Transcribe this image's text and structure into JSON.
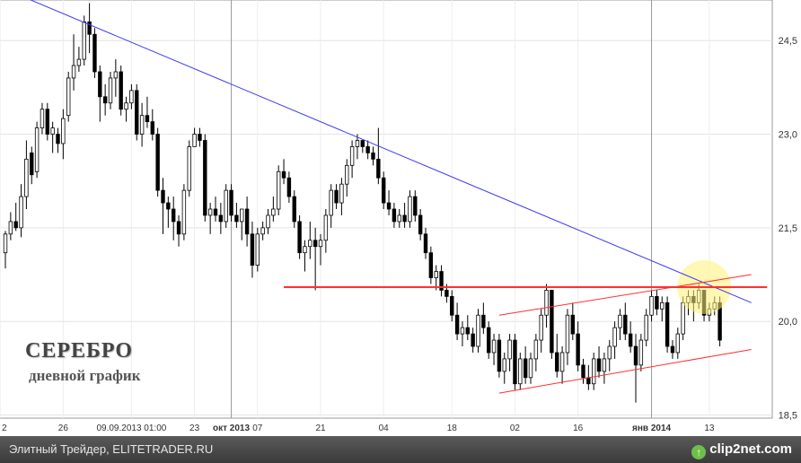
{
  "chart_data": {
    "type": "candlestick",
    "title": "СЕРЕБРО",
    "subtitle": "дневной график",
    "y_axis": {
      "ticks": [
        "24,5",
        "23,0",
        "21,5",
        "20,0",
        "18,5"
      ],
      "tick_values": [
        24.5,
        23.0,
        21.5,
        20.0,
        18.5
      ],
      "range": [
        18.45,
        25.15
      ],
      "side": "right"
    },
    "x_axis": {
      "ticks": [
        "2",
        "26",
        "09.09.2013 01:00",
        "23",
        "окт 2013",
        "07",
        "21",
        "04",
        "18",
        "02",
        "16",
        "янв 2014",
        "13"
      ]
    },
    "grid": true,
    "series": [
      {
        "type": "candlestick",
        "ohlc": [
          [
            21.1,
            21.45,
            20.85,
            21.4
          ],
          [
            21.4,
            21.75,
            21.3,
            21.6
          ],
          [
            21.6,
            21.9,
            21.45,
            21.5
          ],
          [
            21.5,
            22.2,
            21.35,
            22.0
          ],
          [
            22.0,
            22.9,
            21.8,
            22.6
          ],
          [
            22.7,
            22.8,
            22.2,
            22.35
          ],
          [
            22.4,
            23.2,
            22.3,
            23.1
          ],
          [
            23.1,
            23.5,
            23.0,
            23.4
          ],
          [
            23.4,
            23.5,
            22.9,
            23.0
          ],
          [
            23.0,
            23.2,
            22.7,
            23.1
          ],
          [
            23.0,
            23.1,
            22.7,
            22.85
          ],
          [
            22.85,
            23.4,
            22.6,
            23.25
          ],
          [
            23.3,
            24.0,
            23.2,
            23.9
          ],
          [
            23.9,
            24.6,
            23.7,
            24.1
          ],
          [
            24.1,
            24.4,
            24.0,
            24.2
          ],
          [
            24.2,
            24.9,
            24.1,
            24.8
          ],
          [
            24.8,
            25.1,
            24.3,
            24.6
          ],
          [
            24.6,
            24.7,
            23.9,
            24.0
          ],
          [
            24.0,
            24.1,
            23.2,
            23.6
          ],
          [
            23.6,
            23.8,
            23.3,
            23.5
          ],
          [
            23.5,
            24.0,
            23.4,
            23.9
          ],
          [
            23.9,
            24.2,
            23.6,
            24.0
          ],
          [
            24.0,
            24.1,
            23.3,
            23.4
          ],
          [
            23.4,
            23.6,
            23.2,
            23.5
          ],
          [
            23.5,
            23.8,
            23.4,
            23.7
          ],
          [
            23.7,
            23.8,
            22.9,
            23.0
          ],
          [
            23.0,
            23.5,
            22.8,
            23.3
          ],
          [
            23.3,
            23.6,
            23.1,
            23.2
          ],
          [
            23.2,
            23.4,
            22.9,
            23.0
          ],
          [
            23.0,
            23.1,
            22.0,
            22.1
          ],
          [
            22.1,
            22.3,
            21.4,
            21.9
          ],
          [
            21.9,
            22.0,
            21.5,
            21.8
          ],
          [
            21.8,
            22.0,
            21.3,
            21.6
          ],
          [
            21.6,
            21.7,
            21.2,
            21.4
          ],
          [
            21.4,
            22.2,
            21.3,
            22.1
          ],
          [
            22.1,
            22.9,
            22.0,
            22.8
          ],
          [
            22.8,
            23.1,
            22.8,
            23.0
          ],
          [
            23.0,
            23.1,
            22.8,
            22.9
          ],
          [
            22.9,
            23.0,
            21.6,
            21.7
          ],
          [
            21.7,
            21.9,
            21.4,
            21.8
          ],
          [
            21.8,
            22.0,
            21.6,
            21.7
          ],
          [
            21.7,
            21.9,
            21.4,
            21.6
          ],
          [
            21.6,
            22.2,
            21.5,
            22.1
          ],
          [
            22.1,
            22.2,
            21.6,
            21.7
          ],
          [
            21.7,
            21.9,
            21.5,
            21.6
          ],
          [
            21.6,
            21.8,
            21.3,
            21.8
          ],
          [
            21.8,
            22.0,
            21.2,
            21.4
          ],
          [
            21.4,
            21.6,
            20.7,
            20.9
          ],
          [
            20.9,
            21.5,
            20.8,
            21.4
          ],
          [
            21.4,
            21.6,
            21.3,
            21.5
          ],
          [
            21.5,
            21.8,
            21.4,
            21.7
          ],
          [
            21.7,
            22.0,
            21.6,
            21.8
          ],
          [
            21.8,
            22.5,
            21.7,
            22.4
          ],
          [
            22.4,
            22.6,
            22.2,
            22.3
          ],
          [
            22.3,
            22.4,
            21.9,
            22.0
          ],
          [
            22.0,
            22.1,
            21.5,
            21.6
          ],
          [
            21.6,
            21.7,
            21.0,
            21.1
          ],
          [
            21.1,
            21.3,
            20.8,
            21.2
          ],
          [
            21.2,
            21.6,
            21.0,
            21.3
          ],
          [
            21.3,
            21.5,
            20.5,
            21.2
          ],
          [
            21.2,
            21.4,
            20.9,
            21.3
          ],
          [
            21.3,
            21.8,
            21.1,
            21.7
          ],
          [
            21.7,
            22.2,
            21.5,
            22.1
          ],
          [
            22.1,
            22.2,
            21.8,
            21.9
          ],
          [
            21.9,
            22.3,
            21.7,
            22.2
          ],
          [
            22.2,
            22.6,
            22.0,
            22.5
          ],
          [
            22.5,
            22.9,
            22.3,
            22.8
          ],
          [
            22.8,
            23.0,
            22.6,
            22.9
          ],
          [
            22.9,
            22.9,
            22.7,
            22.8
          ],
          [
            22.8,
            22.9,
            22.6,
            22.7
          ],
          [
            22.7,
            22.8,
            22.5,
            22.6
          ],
          [
            22.6,
            23.1,
            22.2,
            22.3
          ],
          [
            22.3,
            22.4,
            21.8,
            21.9
          ],
          [
            21.9,
            22.1,
            21.7,
            21.8
          ],
          [
            21.8,
            21.9,
            21.5,
            21.6
          ],
          [
            21.6,
            21.8,
            21.5,
            21.7
          ],
          [
            21.7,
            21.9,
            21.5,
            21.6
          ],
          [
            21.6,
            22.1,
            21.5,
            22.0
          ],
          [
            22.0,
            22.1,
            21.6,
            21.7
          ],
          [
            21.7,
            21.8,
            21.3,
            21.4
          ],
          [
            21.4,
            21.5,
            21.0,
            21.1
          ],
          [
            21.1,
            21.2,
            20.6,
            20.7
          ],
          [
            20.7,
            20.9,
            20.5,
            20.8
          ],
          [
            20.8,
            20.9,
            20.4,
            20.5
          ],
          [
            20.5,
            20.6,
            20.3,
            20.4
          ],
          [
            20.4,
            20.5,
            20.0,
            20.1
          ],
          [
            20.1,
            20.3,
            19.7,
            19.8
          ],
          [
            19.8,
            20.0,
            19.6,
            19.9
          ],
          [
            19.9,
            20.1,
            19.7,
            19.8
          ],
          [
            19.8,
            19.9,
            19.5,
            19.6
          ],
          [
            19.6,
            20.2,
            19.5,
            20.1
          ],
          [
            20.1,
            20.3,
            19.8,
            19.9
          ],
          [
            19.9,
            20.0,
            19.4,
            19.5
          ],
          [
            19.5,
            19.8,
            19.3,
            19.7
          ],
          [
            19.7,
            19.8,
            19.1,
            19.2
          ],
          [
            19.2,
            19.5,
            19.0,
            19.4
          ],
          [
            19.4,
            19.8,
            19.2,
            19.7
          ],
          [
            19.7,
            19.8,
            18.9,
            19.0
          ],
          [
            19.0,
            19.5,
            18.9,
            19.4
          ],
          [
            19.4,
            19.6,
            19.0,
            19.1
          ],
          [
            19.1,
            19.5,
            19.0,
            19.4
          ],
          [
            19.4,
            19.8,
            19.2,
            19.7
          ],
          [
            19.7,
            20.2,
            19.5,
            20.1
          ],
          [
            20.1,
            20.6,
            19.9,
            20.5
          ],
          [
            20.5,
            20.5,
            19.4,
            19.5
          ],
          [
            19.5,
            19.8,
            19.1,
            19.2
          ],
          [
            19.2,
            19.6,
            19.0,
            19.5
          ],
          [
            19.5,
            20.2,
            19.3,
            20.1
          ],
          [
            20.1,
            20.3,
            19.7,
            19.8
          ],
          [
            19.8,
            20.0,
            19.2,
            19.3
          ],
          [
            19.3,
            19.4,
            19.0,
            19.1
          ],
          [
            19.1,
            19.3,
            18.9,
            19.0
          ],
          [
            19.0,
            19.5,
            18.9,
            19.4
          ],
          [
            19.4,
            19.6,
            19.1,
            19.2
          ],
          [
            19.2,
            19.5,
            19.0,
            19.4
          ],
          [
            19.4,
            19.7,
            19.2,
            19.6
          ],
          [
            19.6,
            20.0,
            19.4,
            19.9
          ],
          [
            19.9,
            20.2,
            19.7,
            20.1
          ],
          [
            20.1,
            20.3,
            19.7,
            19.8
          ],
          [
            19.8,
            20.0,
            19.5,
            19.6
          ],
          [
            19.6,
            19.8,
            18.7,
            19.3
          ],
          [
            19.3,
            19.8,
            19.2,
            19.7
          ],
          [
            19.7,
            20.2,
            19.6,
            20.1
          ],
          [
            20.1,
            20.5,
            20.0,
            20.4
          ],
          [
            20.4,
            20.5,
            20.1,
            20.2
          ],
          [
            20.2,
            20.4,
            20.0,
            20.3
          ],
          [
            20.3,
            20.4,
            19.5,
            19.6
          ],
          [
            19.6,
            19.7,
            19.4,
            19.5
          ],
          [
            19.5,
            19.9,
            19.4,
            19.8
          ],
          [
            19.8,
            20.4,
            19.7,
            20.3
          ],
          [
            20.3,
            20.5,
            20.1,
            20.4
          ],
          [
            20.4,
            20.5,
            20.0,
            20.3
          ],
          [
            20.3,
            20.6,
            20.2,
            20.5
          ],
          [
            20.5,
            20.5,
            20.0,
            20.1
          ],
          [
            20.1,
            20.3,
            20.0,
            20.2
          ],
          [
            20.2,
            20.4,
            20.1,
            20.3
          ],
          [
            20.3,
            20.4,
            19.6,
            19.7
          ]
        ]
      }
    ],
    "lines": [
      {
        "name": "trendline-resistance",
        "color": "#3a3af0",
        "from": [
          2,
          25.25
        ],
        "to": [
          142,
          20.3
        ]
      },
      {
        "name": "horizontal-level",
        "color": "#ff3030",
        "from": [
          53,
          20.55
        ],
        "to": [
          145,
          20.55
        ]
      },
      {
        "name": "channel-upper",
        "color": "#ff3030",
        "from": [
          94,
          20.1
        ],
        "to": [
          142,
          20.75
        ]
      },
      {
        "name": "channel-lower",
        "color": "#ff3030",
        "from": [
          94,
          18.85
        ],
        "to": [
          142,
          19.55
        ]
      }
    ],
    "highlight": {
      "center_index": 133,
      "center_value": 20.55,
      "color": "#fff176"
    }
  },
  "footer": {
    "text": "Элитный Трейдер, ELITETRADER.RU",
    "logo": "clip2net.com"
  }
}
